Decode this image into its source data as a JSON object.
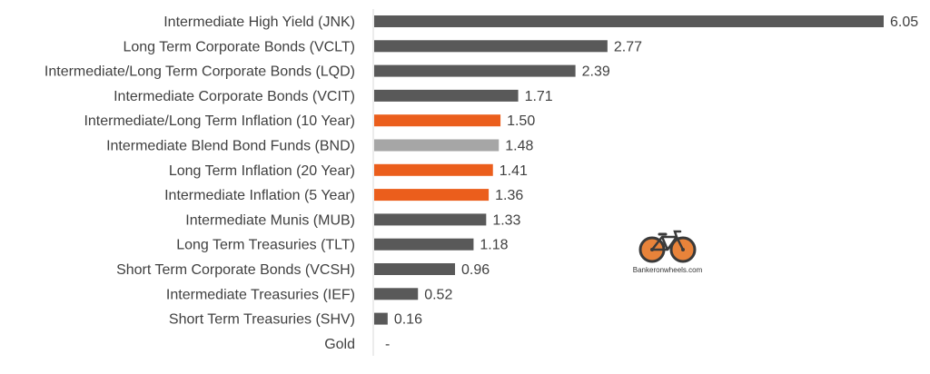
{
  "chart_data": {
    "type": "bar",
    "orientation": "horizontal",
    "categories": [
      "Intermediate High Yield (JNK)",
      "Long Term Corporate Bonds (VCLT)",
      "Intermediate/Long Term Corporate Bonds (LQD)",
      "Intermediate Corporate Bonds (VCIT)",
      "Intermediate/Long Term Inflation (10 Year)",
      "Intermediate Blend Bond Funds (BND)",
      "Long Term Inflation (20 Year)",
      "Intermediate Inflation (5 Year)",
      "Intermediate Munis (MUB)",
      "Long Term Treasuries (TLT)",
      "Short Term Corporate Bonds (VCSH)",
      "Intermediate Treasuries (IEF)",
      "Short Term Treasuries (SHV)",
      "Gold"
    ],
    "values": [
      6.05,
      2.77,
      2.39,
      1.71,
      1.5,
      1.48,
      1.41,
      1.36,
      1.33,
      1.18,
      0.96,
      0.52,
      0.16,
      0
    ],
    "value_labels": [
      "6.05",
      "2.77",
      "2.39",
      "1.71",
      "1.50",
      "1.48",
      "1.41",
      "1.36",
      "1.33",
      "1.18",
      "0.96",
      "0.52",
      "0.16",
      "-"
    ],
    "bar_colors": [
      "#595959",
      "#595959",
      "#595959",
      "#595959",
      "#EB5E1C",
      "#A6A6A6",
      "#EB5E1C",
      "#EB5E1C",
      "#595959",
      "#595959",
      "#595959",
      "#595959",
      "#595959",
      "#595959"
    ],
    "title": "",
    "xlabel": "",
    "ylabel": "",
    "xlim": [
      0,
      6.05
    ],
    "grid": false,
    "legend": "none"
  },
  "colors": {
    "axis": "#D9D9D9",
    "label_text": "#404040",
    "logo_orange": "#E8833A",
    "logo_dark": "#3A3A3A"
  },
  "logo": {
    "icon": "bicycle-icon",
    "text": "Bankeronwheels.com"
  }
}
